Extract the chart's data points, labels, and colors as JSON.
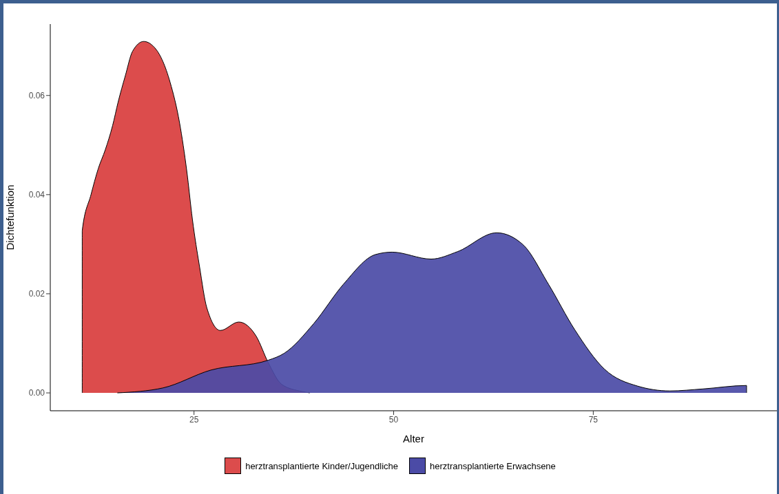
{
  "chart_data": {
    "type": "area",
    "xlabel": "Alter",
    "ylabel": "Dichtefunktion",
    "xlim": [
      7,
      98
    ],
    "xticks": [
      25,
      50,
      75
    ],
    "ylim": [
      -0.0036,
      0.0744
    ],
    "yticks": [
      {
        "value": 0,
        "label": "0.00"
      },
      {
        "value": 0.02,
        "label": "0.02"
      },
      {
        "value": 0.04,
        "label": "0.04"
      },
      {
        "value": 0.06,
        "label": "0.06"
      }
    ],
    "grid": false,
    "legend": "bottom",
    "series": [
      {
        "name": "herztransplantierte Kinder/Jugendliche",
        "color": "#dc4c4c",
        "x": [
          11,
          11,
          12.1,
          13,
          13.9,
          14.8,
          15.5,
          16.4,
          17.3,
          18.7,
          20.2,
          22,
          23.2,
          24.1,
          24.8,
          25.7,
          26.6,
          28.3,
          30.6,
          32.8,
          34.3,
          36,
          38.5,
          39.5
        ],
        "values": [
          0,
          0.0327,
          0.04,
          0.0452,
          0.0491,
          0.0539,
          0.0587,
          0.064,
          0.0689,
          0.0709,
          0.0694,
          0.0627,
          0.0544,
          0.0447,
          0.035,
          0.0254,
          0.0172,
          0.0126,
          0.0143,
          0.0114,
          0.0061,
          0.0017,
          0.0003,
          0
        ]
      },
      {
        "name": "herztransplantierte Erwachsene",
        "color": "#4b4ba6",
        "x": [
          15.4,
          21.1,
          27.1,
          34.3,
          36.3,
          40,
          43.7,
          47.7,
          49.8,
          54.7,
          58,
          62.9,
          66.2,
          69.4,
          72.7,
          76.4,
          80.5,
          84.6,
          88.7,
          94.2,
          94.2
        ],
        "values": [
          0,
          0.001,
          0.0046,
          0.0066,
          0.008,
          0.014,
          0.0219,
          0.0279,
          0.0284,
          0.027,
          0.0285,
          0.0323,
          0.0299,
          0.0219,
          0.0127,
          0.0048,
          0.0014,
          0.0004,
          0.0008,
          0.0015,
          0
        ]
      }
    ]
  }
}
